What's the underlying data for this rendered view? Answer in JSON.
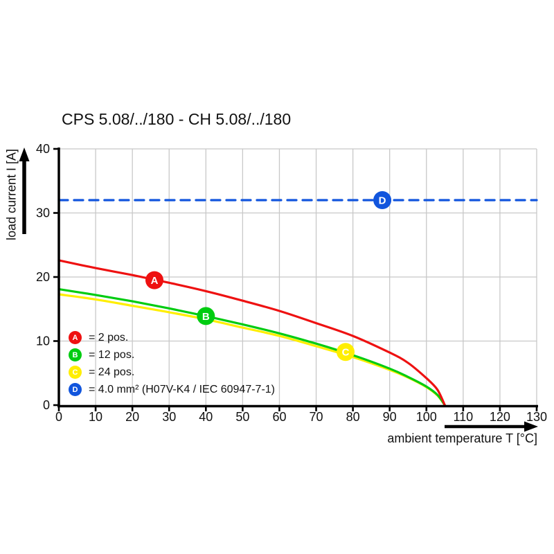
{
  "title": "CPS 5.08/../180 - CH 5.08/../180",
  "axes": {
    "x_label": "ambient temperature T [°C]",
    "y_label": "load current I [A]",
    "x_ticks": [
      0,
      10,
      20,
      30,
      40,
      50,
      60,
      70,
      80,
      90,
      100,
      110,
      120,
      130
    ],
    "y_ticks": [
      0,
      10,
      20,
      30,
      40
    ]
  },
  "colors": {
    "series_a": "#ee1111",
    "series_b": "#00cc11",
    "series_c": "#ffee00",
    "series_d": "#1155dd",
    "grid": "#c8c8c8",
    "axis": "#000000"
  },
  "legend": {
    "items": [
      {
        "letter": "A",
        "label": "= 2 pos.",
        "color": "#ee1111"
      },
      {
        "letter": "B",
        "label": "= 12 pos.",
        "color": "#00cc11"
      },
      {
        "letter": "C",
        "label": "= 24 pos.",
        "color": "#ffee00"
      },
      {
        "letter": "D",
        "label": "= 4.0 mm² (H07V-K4 / IEC 60947-7-1)",
        "color": "#1155dd"
      }
    ]
  },
  "chart_data": {
    "type": "line",
    "title": "CPS 5.08/../180 - CH 5.08/../180",
    "xlabel": "ambient temperature T [°C]",
    "ylabel": "load current I [A]",
    "xlim": [
      0,
      130
    ],
    "ylim": [
      0,
      40
    ],
    "grid": true,
    "legend_position": "inside lower-left",
    "series": [
      {
        "name": "A = 2 pos.",
        "color": "#ee1111",
        "style": "solid",
        "points": [
          [
            0,
            22.6
          ],
          [
            10,
            21.4
          ],
          [
            20,
            20.3
          ],
          [
            30,
            19.1
          ],
          [
            40,
            17.8
          ],
          [
            50,
            16.3
          ],
          [
            60,
            14.7
          ],
          [
            70,
            12.8
          ],
          [
            80,
            10.8
          ],
          [
            90,
            8.2
          ],
          [
            95,
            6.6
          ],
          [
            100,
            4.2
          ],
          [
            103,
            2.4
          ],
          [
            105,
            0
          ]
        ]
      },
      {
        "name": "B = 12 pos.",
        "color": "#00cc11",
        "style": "solid",
        "points": [
          [
            0,
            18.1
          ],
          [
            10,
            17.2
          ],
          [
            20,
            16.2
          ],
          [
            30,
            15.1
          ],
          [
            40,
            13.9
          ],
          [
            50,
            12.6
          ],
          [
            60,
            11.2
          ],
          [
            70,
            9.6
          ],
          [
            80,
            7.8
          ],
          [
            90,
            5.7
          ],
          [
            95,
            4.4
          ],
          [
            100,
            2.9
          ],
          [
            103,
            1.6
          ],
          [
            105,
            0
          ]
        ]
      },
      {
        "name": "C = 24 pos.",
        "color": "#ffee00",
        "style": "solid",
        "points": [
          [
            0,
            17.3
          ],
          [
            10,
            16.5
          ],
          [
            20,
            15.5
          ],
          [
            30,
            14.5
          ],
          [
            40,
            13.4
          ],
          [
            50,
            12.1
          ],
          [
            60,
            10.8
          ],
          [
            70,
            9.2
          ],
          [
            80,
            7.5
          ],
          [
            90,
            5.5
          ],
          [
            95,
            4.3
          ],
          [
            100,
            2.8
          ],
          [
            103,
            1.5
          ],
          [
            105,
            0
          ]
        ]
      },
      {
        "name": "D = 4.0 mm² (H07V-K4 / IEC 60947-7-1)",
        "color": "#1155dd",
        "style": "dashed",
        "points": [
          [
            0,
            32
          ],
          [
            130,
            32
          ]
        ]
      }
    ],
    "markers": [
      {
        "letter": "A",
        "x": 26,
        "y": 19.5,
        "color": "#ee1111"
      },
      {
        "letter": "B",
        "x": 40,
        "y": 13.9,
        "color": "#00cc11"
      },
      {
        "letter": "C",
        "x": 78,
        "y": 8.3,
        "color": "#ffee00"
      },
      {
        "letter": "D",
        "x": 88,
        "y": 32,
        "color": "#1155dd"
      }
    ]
  }
}
